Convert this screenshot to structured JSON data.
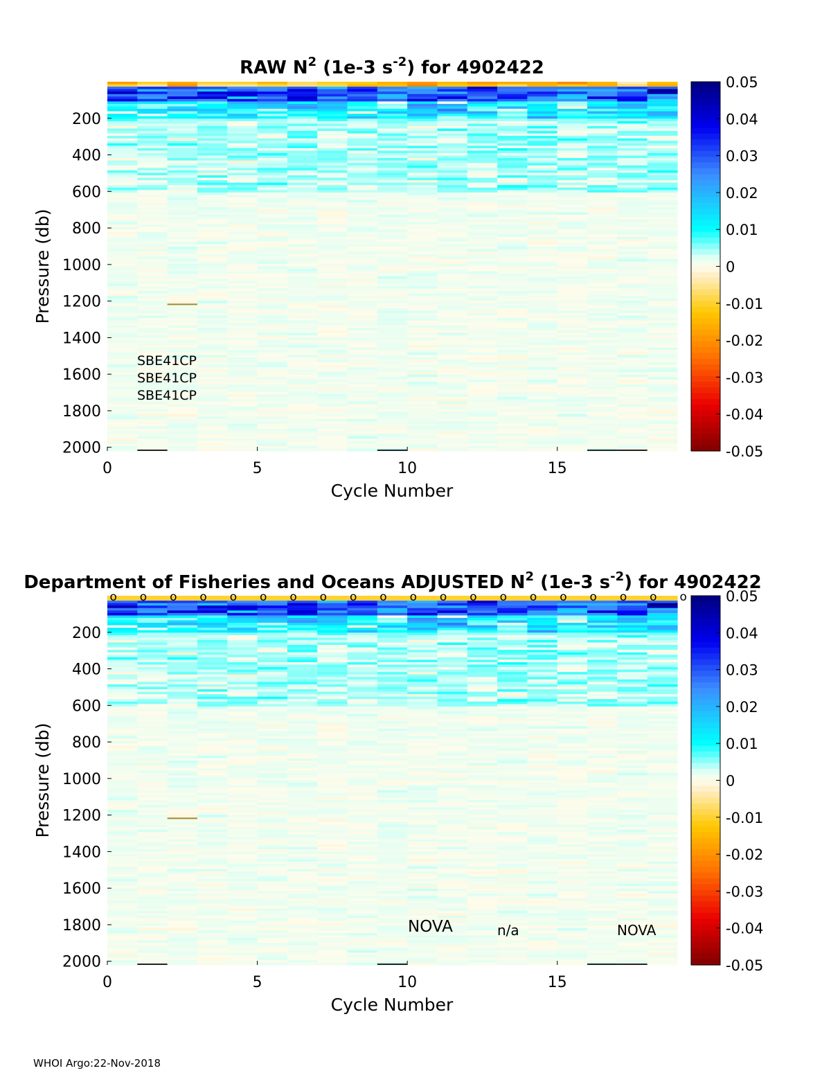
{
  "chart_data": [
    {
      "type": "heatmap",
      "title_prefix": "RAW N",
      "title_sup": "2",
      "title_mid": " (1e-3 s",
      "title_sup2": "-2",
      "title_suffix": ") for 4902422",
      "xlabel": "Cycle Number",
      "ylabel": "Pressure (db)",
      "xlim": [
        0,
        19
      ],
      "ylim": [
        0,
        2020
      ],
      "xticks": [
        0,
        5,
        10,
        15
      ],
      "yticks": [
        200,
        400,
        600,
        800,
        1000,
        1200,
        1400,
        1600,
        1800,
        2000
      ],
      "colorbar": {
        "ticks": [
          "0.05",
          "0.04",
          "0.03",
          "0.02",
          "0.01",
          "0",
          "-0.01",
          "-0.02",
          "-0.03",
          "-0.04",
          "-0.05"
        ],
        "min": -0.05,
        "max": 0.05
      },
      "annotations": [
        "SBE41CP",
        "SBE41CP",
        "SBE41CP"
      ],
      "markers": []
    },
    {
      "type": "heatmap",
      "title_prefix": "Department of Fisheries and Oceans  ADJUSTED N",
      "title_sup": "2",
      "title_mid": " (1e-3 s",
      "title_sup2": "-2",
      "title_suffix": ") for 4902422",
      "xlabel": "Cycle Number",
      "ylabel": "Pressure (db)",
      "xlim": [
        0,
        19
      ],
      "ylim": [
        0,
        2020
      ],
      "xticks": [
        0,
        5,
        10,
        15
      ],
      "yticks": [
        200,
        400,
        600,
        800,
        1000,
        1200,
        1400,
        1600,
        1800,
        2000
      ],
      "colorbar": {
        "ticks": [
          "0.05",
          "0.04",
          "0.03",
          "0.02",
          "0.01",
          "0",
          "-0.01",
          "-0.02",
          "-0.03",
          "-0.04",
          "-0.05"
        ],
        "min": -0.05,
        "max": 0.05
      },
      "annotations": [
        "NOVA",
        "n/a",
        "NOVA"
      ],
      "markers": [
        "o",
        "o",
        "o",
        "o",
        "o",
        "o",
        "o",
        "o",
        "o",
        "o",
        "o",
        "o",
        "o",
        "o",
        "o",
        "o",
        "o",
        "o",
        "o",
        "o"
      ]
    }
  ],
  "footer": "WHOI Argo:22-Nov-2018"
}
